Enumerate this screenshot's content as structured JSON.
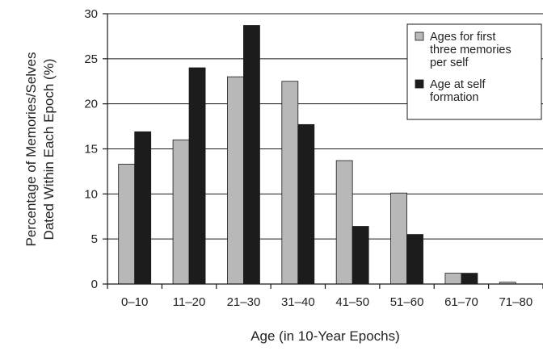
{
  "chart_data": {
    "type": "bar",
    "categories": [
      "0–10",
      "11–20",
      "21–30",
      "31–40",
      "41–50",
      "51–60",
      "61–70",
      "71–80"
    ],
    "series": [
      {
        "name": "Ages for first three memories per self",
        "legend_lines": [
          "Ages for first",
          "three memories",
          "per self"
        ],
        "color": "#b8b8b8",
        "values": [
          13.3,
          16.0,
          23.0,
          22.5,
          13.7,
          10.1,
          1.2,
          0.2
        ]
      },
      {
        "name": "Age at self formation",
        "legend_lines": [
          "Age at self",
          "formation"
        ],
        "color": "#1c1c1c",
        "values": [
          16.9,
          24.0,
          28.7,
          17.7,
          6.4,
          5.5,
          1.2,
          0.0
        ]
      }
    ],
    "ylabel_lines": [
      "Percentage of Memories/Selves",
      "Dated Within Each Epoch (%)"
    ],
    "xlabel": "Age (in 10-Year Epochs)",
    "ylim": [
      0,
      30
    ],
    "yticks": [
      0,
      5,
      10,
      15,
      20,
      25,
      30
    ],
    "grid": "horizontal",
    "legend_position": "top-right"
  }
}
